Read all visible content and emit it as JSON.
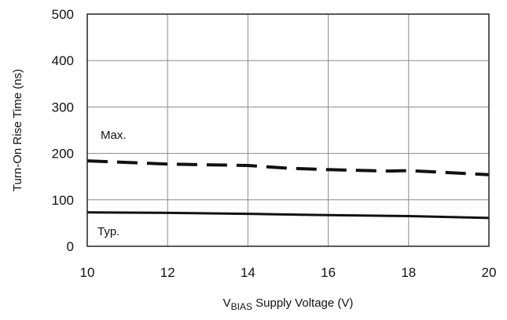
{
  "chart_data": {
    "type": "line",
    "title": "",
    "xlabel": {
      "prefix": "V",
      "subscript": "BIAS",
      "suffix": " Supply Voltage (V)"
    },
    "ylabel": "Turn-On Rise Time (ns)",
    "xlim": [
      10,
      20
    ],
    "ylim": [
      0,
      500
    ],
    "xticks": [
      10,
      12,
      14,
      16,
      18,
      20
    ],
    "yticks": [
      0,
      100,
      200,
      300,
      400,
      500
    ],
    "grid": true,
    "series": [
      {
        "name": "Max.",
        "style": "dashed",
        "color": "#111111",
        "x": [
          10,
          12,
          14,
          15,
          16,
          17.5,
          18,
          20
        ],
        "y": [
          184,
          177,
          174,
          168,
          165,
          162,
          163,
          154
        ]
      },
      {
        "name": "Typ.",
        "style": "solid",
        "color": "#111111",
        "x": [
          10,
          12,
          14,
          16,
          18,
          20
        ],
        "y": [
          73,
          72,
          70,
          67,
          65,
          61
        ]
      }
    ]
  }
}
